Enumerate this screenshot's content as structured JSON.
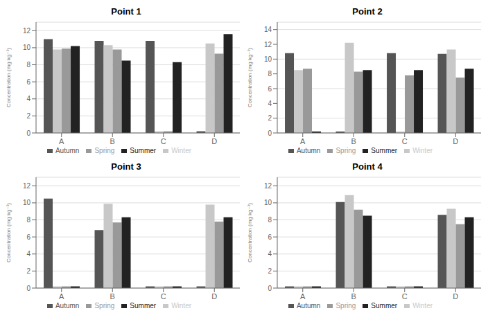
{
  "chart_data": [
    {
      "type": "bar",
      "title": "Point 1",
      "ylabel": "Concentration (mg kg⁻¹)",
      "categories": [
        "A",
        "B",
        "C",
        "D"
      ],
      "series": [
        {
          "name": "Autumn",
          "color": "#555555",
          "values": [
            11.0,
            10.8,
            10.8,
            0.2
          ]
        },
        {
          "name": "Winter",
          "color": "#c8c8c8",
          "values": [
            9.8,
            10.3,
            0.2,
            10.5
          ]
        },
        {
          "name": "Spring",
          "color": "#999999",
          "values": [
            9.9,
            9.8,
            0.2,
            9.3
          ]
        },
        {
          "name": "Summer",
          "color": "#222222",
          "values": [
            10.2,
            8.5,
            8.3,
            11.6
          ]
        }
      ],
      "ylim": [
        0,
        13
      ],
      "yticks": [
        0,
        2,
        4,
        6,
        8,
        10,
        12
      ],
      "grid": true,
      "legend": "bottom"
    },
    {
      "type": "bar",
      "title": "Point 2",
      "ylabel": "Concentration (mg kg⁻¹)",
      "categories": [
        "A",
        "B",
        "C",
        "D"
      ],
      "series": [
        {
          "name": "Autumn",
          "color": "#555555",
          "values": [
            10.8,
            0.2,
            10.8,
            10.7
          ]
        },
        {
          "name": "Winter",
          "color": "#c8c8c8",
          "values": [
            8.5,
            12.2,
            0.2,
            11.3
          ]
        },
        {
          "name": "Spring",
          "color": "#999999",
          "values": [
            8.7,
            8.3,
            7.8,
            7.5
          ]
        },
        {
          "name": "Summer",
          "color": "#222222",
          "values": [
            0.2,
            8.5,
            8.5,
            8.7
          ]
        }
      ],
      "ylim": [
        0,
        15
      ],
      "yticks": [
        0,
        2,
        4,
        6,
        8,
        10,
        12,
        14
      ],
      "grid": true,
      "legend": "bottom"
    },
    {
      "type": "bar",
      "title": "Point 3",
      "ylabel": "Concentration (mg kg⁻¹)",
      "categories": [
        "A",
        "B",
        "C",
        "D"
      ],
      "series": [
        {
          "name": "Autumn",
          "color": "#555555",
          "values": [
            10.5,
            6.8,
            0.2,
            0.2
          ]
        },
        {
          "name": "Winter",
          "color": "#c8c8c8",
          "values": [
            0.2,
            9.9,
            0.2,
            9.8
          ]
        },
        {
          "name": "Spring",
          "color": "#999999",
          "values": [
            0.2,
            7.7,
            0.2,
            7.8
          ]
        },
        {
          "name": "Summer",
          "color": "#222222",
          "values": [
            0.2,
            8.3,
            0.2,
            8.3
          ]
        }
      ],
      "ylim": [
        0,
        13
      ],
      "yticks": [
        0,
        2,
        4,
        6,
        8,
        10,
        12
      ],
      "grid": true,
      "legend": "bottom"
    },
    {
      "type": "bar",
      "title": "Point 4",
      "ylabel": "Concentration (mg kg⁻¹)",
      "categories": [
        "A",
        "B",
        "C",
        "D"
      ],
      "series": [
        {
          "name": "Autumn",
          "color": "#555555",
          "values": [
            0.2,
            10.1,
            0.2,
            8.6
          ]
        },
        {
          "name": "Winter",
          "color": "#c8c8c8",
          "values": [
            0.2,
            10.9,
            0.2,
            9.3
          ]
        },
        {
          "name": "Spring",
          "color": "#999999",
          "values": [
            0.2,
            9.2,
            0.2,
            7.5
          ]
        },
        {
          "name": "Summer",
          "color": "#222222",
          "values": [
            0.2,
            8.5,
            0.2,
            8.3
          ]
        }
      ],
      "ylim": [
        0,
        13
      ],
      "yticks": [
        0,
        2,
        4,
        6,
        8,
        10,
        12
      ],
      "grid": true,
      "legend": "bottom"
    }
  ]
}
